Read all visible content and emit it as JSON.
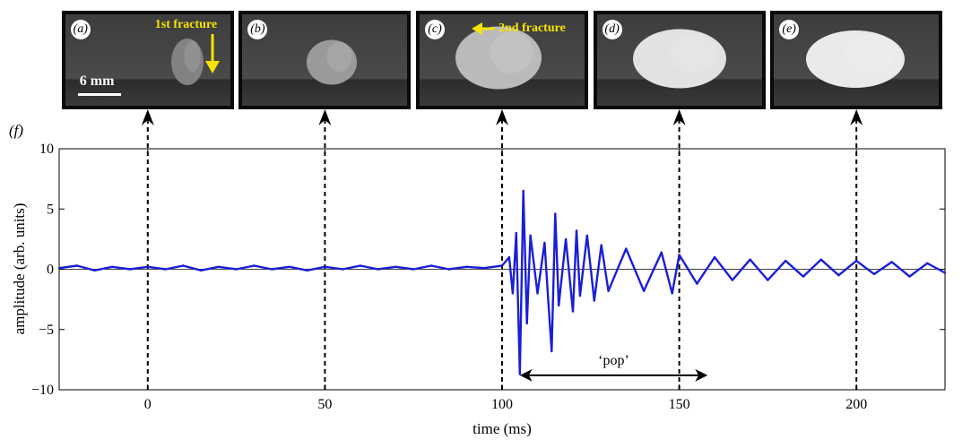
{
  "panels": [
    {
      "tag": "(a)",
      "note": "1st fracture",
      "scale": "6 mm",
      "t": 0
    },
    {
      "tag": "(b)",
      "note": "",
      "t": 50
    },
    {
      "tag": "(c)",
      "note": "2nd fracture",
      "t": 100
    },
    {
      "tag": "(d)",
      "note": "",
      "t": 150
    },
    {
      "tag": "(e)",
      "note": "",
      "t": 200
    }
  ],
  "panel_label": "(f)",
  "colors": {
    "signal": "#1a1fd6",
    "annotation": "#f5e400",
    "frame": "#0a0a0a"
  },
  "chart_data": {
    "type": "line",
    "title": "",
    "xlabel": "time (ms)",
    "ylabel": "amplitude (arb. units)",
    "xlim": [
      -25,
      225
    ],
    "ylim": [
      -10,
      10
    ],
    "xticks": [
      0,
      50,
      100,
      150,
      200
    ],
    "yticks": [
      -10,
      -5,
      0,
      5,
      10
    ],
    "markers_at": [
      0,
      50,
      100,
      150,
      200
    ],
    "grid": false,
    "series": [
      {
        "x": [
          -25,
          -20,
          -15,
          -10,
          -5,
          0,
          5,
          10,
          15,
          20,
          25,
          30,
          35,
          40,
          45,
          50,
          55,
          60,
          65,
          70,
          75,
          80,
          85,
          90,
          95,
          100,
          102,
          103,
          104,
          105,
          106,
          107,
          108,
          110,
          112,
          113,
          114,
          115,
          116,
          118,
          120,
          121,
          122,
          124,
          126,
          128,
          130,
          135,
          140,
          145,
          148,
          150,
          155,
          160,
          165,
          170,
          175,
          180,
          185,
          190,
          195,
          200,
          205,
          210,
          215,
          220,
          225
        ],
        "y": [
          0.1,
          0.3,
          -0.1,
          0.2,
          0.0,
          0.2,
          0.0,
          0.3,
          -0.1,
          0.2,
          0.0,
          0.3,
          0.0,
          0.2,
          -0.1,
          0.2,
          0.0,
          0.3,
          0.0,
          0.2,
          0.0,
          0.3,
          0.0,
          0.2,
          0.1,
          0.3,
          1.0,
          -2.0,
          3.0,
          -8.7,
          6.5,
          -4.5,
          2.8,
          -2.0,
          2.2,
          -2.5,
          -6.8,
          4.6,
          -3.0,
          2.5,
          -3.5,
          3.2,
          -2.2,
          2.8,
          -2.6,
          2.0,
          -1.8,
          1.7,
          -1.8,
          1.4,
          -2.0,
          1.2,
          -1.2,
          1.0,
          -0.9,
          0.8,
          -0.9,
          0.7,
          -0.6,
          0.8,
          -0.5,
          0.7,
          -0.4,
          0.6,
          -0.6,
          0.5,
          -0.3
        ]
      }
    ],
    "annotations": [
      {
        "text": "‘pop’",
        "x_from": 105,
        "x_to": 158,
        "y": -8.8
      }
    ]
  }
}
